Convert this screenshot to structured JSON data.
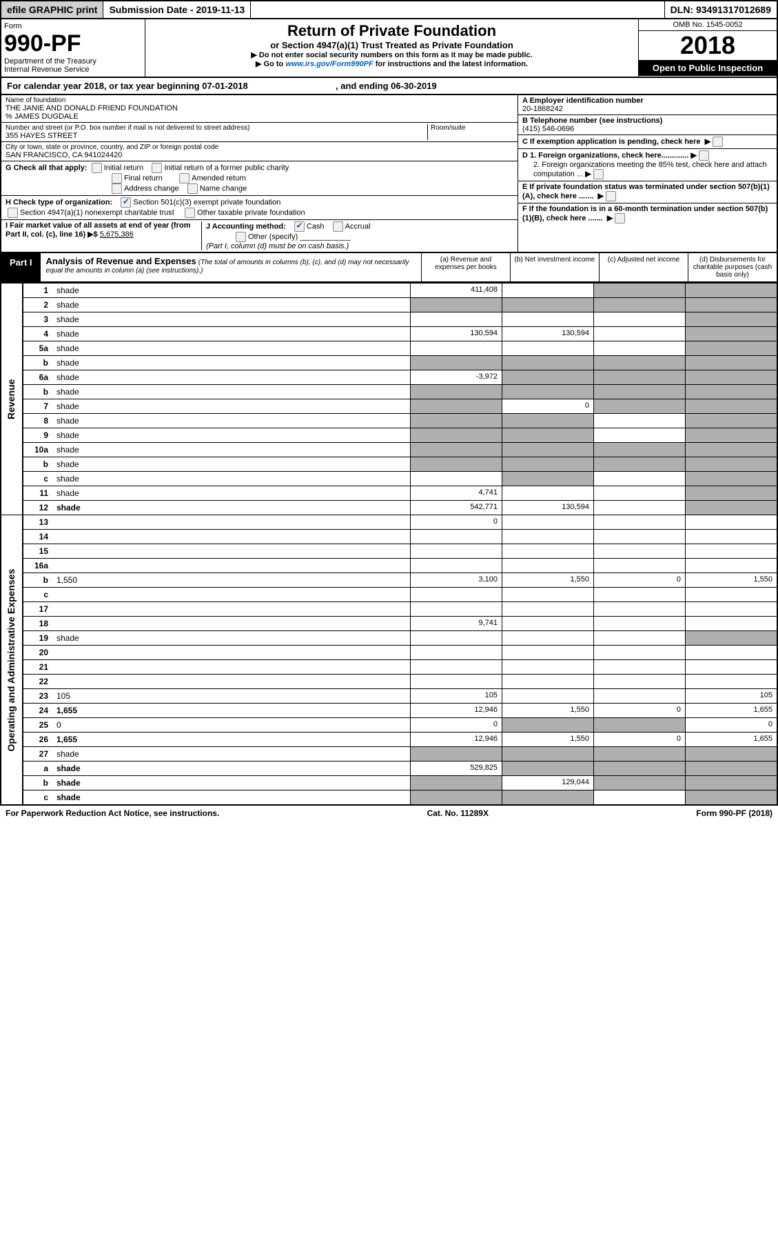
{
  "top_bar": {
    "efile": "efile GRAPHIC print",
    "submission": "Submission Date - 2019-11-13",
    "dln": "DLN: 93491317012689"
  },
  "header": {
    "form_word": "Form",
    "form_no": "990-PF",
    "dept1": "Department of the Treasury",
    "dept2": "Internal Revenue Service",
    "title": "Return of Private Foundation",
    "subtitle": "or Section 4947(a)(1) Trust Treated as Private Foundation",
    "instr1": "▶ Do not enter social security numbers on this form as it may be made public.",
    "instr2_pre": "▶ Go to ",
    "instr2_link": "www.irs.gov/Form990PF",
    "instr2_post": " for instructions and the latest information.",
    "omb": "OMB No. 1545-0052",
    "year": "2018",
    "open_pub": "Open to Public Inspection"
  },
  "cal_year": {
    "text_pre": "For calendar year 2018, or tax year beginning 07-01-2018",
    "text_mid": ", and ending 06-30-2019"
  },
  "identity": {
    "name_label": "Name of foundation",
    "name": "THE JANIE AND DONALD FRIEND FOUNDATION",
    "care_of": "% JAMES DUGDALE",
    "addr_label": "Number and street (or P.O. box number if mail is not delivered to street address)",
    "addr": "355 HAYES STREET",
    "room_label": "Room/suite",
    "city_label": "City or town, state or province, country, and ZIP or foreign postal code",
    "city": "SAN FRANCISCO, CA  941024420",
    "ein_label": "A Employer identification number",
    "ein": "20-1868242",
    "tel_label": "B Telephone number (see instructions)",
    "tel": "(415) 546-0696",
    "c_label": "C If exemption application is pending, check here",
    "d1": "D 1. Foreign organizations, check here.............",
    "d2": "2. Foreign organizations meeting the 85% test, check here and attach computation ...",
    "e_label": "E  If private foundation status was terminated under section 507(b)(1)(A), check here .......",
    "f_label": "F  If the foundation is in a 60-month termination under section 507(b)(1)(B), check here .......",
    "g_label": "G Check all that apply:",
    "g_opts": {
      "initial": "Initial return",
      "initial_former": "Initial return of a former public charity",
      "final": "Final return",
      "amended": "Amended return",
      "addr_change": "Address change",
      "name_change": "Name change"
    },
    "h_label": "H Check type of organization:",
    "h_opts": {
      "s501": "Section 501(c)(3) exempt private foundation",
      "s4947": "Section 4947(a)(1) nonexempt charitable trust",
      "other_tax": "Other taxable private foundation"
    },
    "i_label": "I Fair market value of all assets at end of year (from Part II, col. (c), line 16) ▶$",
    "i_value": "5,675,386",
    "j_label": "J Accounting method:",
    "j_cash": "Cash",
    "j_accrual": "Accrual",
    "j_other": "Other (specify)",
    "j_note": "(Part I, column (d) must be on cash basis.)"
  },
  "part1": {
    "label": "Part I",
    "title": "Analysis of Revenue and Expenses",
    "note": "(The total of amounts in columns (b), (c), and (d) may not necessarily equal the amounts in column (a) (see instructions).)",
    "col_a": "(a)  Revenue and expenses per books",
    "col_b": "(b)  Net investment income",
    "col_c": "(c)  Adjusted net income",
    "col_d": "(d)  Disbursements for charitable purposes (cash basis only)"
  },
  "side_labels": {
    "revenue": "Revenue",
    "expenses": "Operating and Administrative Expenses"
  },
  "lines": [
    {
      "n": "1",
      "d": "shade",
      "a": "411,408",
      "b": "",
      "c": "shade"
    },
    {
      "n": "2",
      "d": "shade",
      "a": "shade",
      "b": "shade",
      "c": "shade"
    },
    {
      "n": "3",
      "d": "shade",
      "a": "",
      "b": "",
      "c": ""
    },
    {
      "n": "4",
      "d": "shade",
      "a": "130,594",
      "b": "130,594",
      "c": ""
    },
    {
      "n": "5a",
      "d": "shade",
      "a": "",
      "b": "",
      "c": ""
    },
    {
      "n": "b",
      "d": "shade",
      "a": "shade",
      "b": "shade",
      "c": "shade"
    },
    {
      "n": "6a",
      "d": "shade",
      "a": "-3,972",
      "b": "shade",
      "c": "shade"
    },
    {
      "n": "b",
      "d": "shade",
      "a": "shade",
      "b": "shade",
      "c": "shade"
    },
    {
      "n": "7",
      "d": "shade",
      "a": "shade",
      "b": "0",
      "c": "shade"
    },
    {
      "n": "8",
      "d": "shade",
      "a": "shade",
      "b": "shade",
      "c": ""
    },
    {
      "n": "9",
      "d": "shade",
      "a": "shade",
      "b": "shade",
      "c": ""
    },
    {
      "n": "10a",
      "d": "shade",
      "a": "shade",
      "b": "shade",
      "c": "shade"
    },
    {
      "n": "b",
      "d": "shade",
      "a": "shade",
      "b": "shade",
      "c": "shade"
    },
    {
      "n": "c",
      "d": "shade",
      "a": "",
      "b": "shade",
      "c": ""
    },
    {
      "n": "11",
      "d": "shade",
      "a": "4,741",
      "b": "",
      "c": ""
    },
    {
      "n": "12",
      "d": "shade",
      "a": "542,771",
      "b": "130,594",
      "c": "",
      "bold": true
    },
    {
      "n": "13",
      "d": "",
      "a": "0",
      "b": "",
      "c": ""
    },
    {
      "n": "14",
      "d": "",
      "a": "",
      "b": "",
      "c": ""
    },
    {
      "n": "15",
      "d": "",
      "a": "",
      "b": "",
      "c": ""
    },
    {
      "n": "16a",
      "d": "",
      "a": "",
      "b": "",
      "c": ""
    },
    {
      "n": "b",
      "d": "1,550",
      "a": "3,100",
      "b": "1,550",
      "c": "0"
    },
    {
      "n": "c",
      "d": "",
      "a": "",
      "b": "",
      "c": ""
    },
    {
      "n": "17",
      "d": "",
      "a": "",
      "b": "",
      "c": ""
    },
    {
      "n": "18",
      "d": "",
      "a": "9,741",
      "b": "",
      "c": ""
    },
    {
      "n": "19",
      "d": "shade",
      "a": "",
      "b": "",
      "c": ""
    },
    {
      "n": "20",
      "d": "",
      "a": "",
      "b": "",
      "c": ""
    },
    {
      "n": "21",
      "d": "",
      "a": "",
      "b": "",
      "c": ""
    },
    {
      "n": "22",
      "d": "",
      "a": "",
      "b": "",
      "c": ""
    },
    {
      "n": "23",
      "d": "105",
      "a": "105",
      "b": "",
      "c": ""
    },
    {
      "n": "24",
      "d": "1,655",
      "a": "12,946",
      "b": "1,550",
      "c": "0",
      "bold": true
    },
    {
      "n": "25",
      "d": "0",
      "a": "0",
      "b": "shade",
      "c": "shade"
    },
    {
      "n": "26",
      "d": "1,655",
      "a": "12,946",
      "b": "1,550",
      "c": "0",
      "bold": true
    },
    {
      "n": "27",
      "d": "shade",
      "a": "shade",
      "b": "shade",
      "c": "shade"
    },
    {
      "n": "a",
      "d": "shade",
      "a": "529,825",
      "b": "shade",
      "c": "shade",
      "bold": true
    },
    {
      "n": "b",
      "d": "shade",
      "a": "shade",
      "b": "129,044",
      "c": "shade",
      "bold": true
    },
    {
      "n": "c",
      "d": "shade",
      "a": "shade",
      "b": "shade",
      "c": "",
      "bold": true
    }
  ],
  "footer": {
    "left": "For Paperwork Reduction Act Notice, see instructions.",
    "mid": "Cat. No. 11289X",
    "right": "Form 990-PF (2018)"
  }
}
